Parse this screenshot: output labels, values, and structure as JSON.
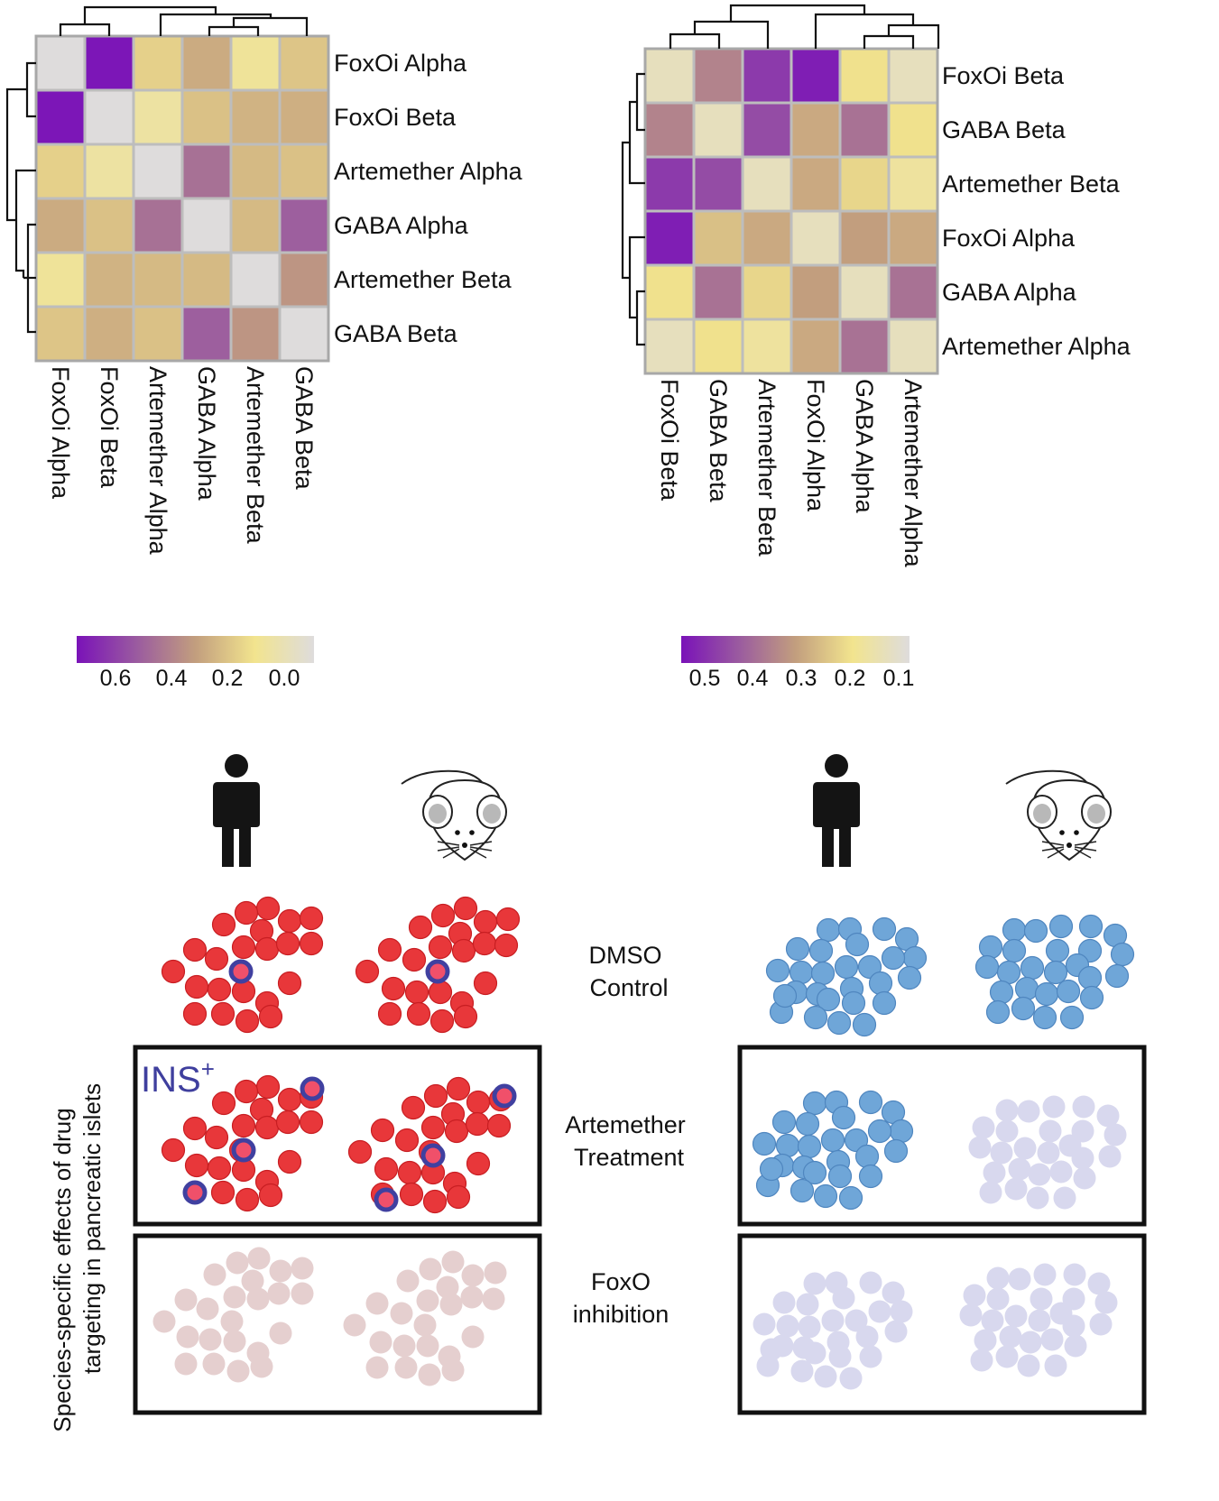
{
  "heatmap_left": {
    "row_labels": [
      "FoxOi Alpha",
      "FoxOi Beta",
      "Artemether Alpha",
      "GABA Alpha",
      "Artemether Beta",
      "GABA Beta"
    ],
    "col_labels": [
      "FoxOi Alpha",
      "FoxOi Beta",
      "Artemether Alpha",
      "GABA Alpha",
      "Artemether Beta",
      "GABA Beta"
    ],
    "values": [
      [
        0.0,
        0.74,
        0.24,
        0.34,
        0.16,
        0.27
      ],
      [
        0.74,
        0.0,
        0.14,
        0.28,
        0.32,
        0.33
      ],
      [
        0.24,
        0.14,
        0.0,
        0.5,
        0.3,
        0.28
      ],
      [
        0.34,
        0.28,
        0.5,
        0.0,
        0.3,
        0.55
      ],
      [
        0.16,
        0.32,
        0.3,
        0.3,
        0.0,
        0.4
      ],
      [
        0.27,
        0.33,
        0.28,
        0.55,
        0.4,
        0.0
      ]
    ],
    "colorbar": {
      "ticks": [
        "0.6",
        "0.4",
        "0.2",
        "0.0"
      ],
      "min": 0.0,
      "max": 0.75
    }
  },
  "heatmap_right": {
    "row_labels": [
      "FoxOi Beta",
      "GABA Beta",
      "Artemether Beta",
      "FoxOi  Alpha",
      "GABA Alpha",
      "Artemether Alpha"
    ],
    "col_labels": [
      "FoxOi Beta",
      "GABA Beta",
      "Artemether Beta",
      "FoxOi Alpha",
      "GABA Alpha",
      "Artemether  Alpha"
    ],
    "values": [
      [
        0.1,
        0.35,
        0.48,
        0.53,
        0.18,
        0.1
      ],
      [
        0.35,
        0.1,
        0.45,
        0.28,
        0.38,
        0.18
      ],
      [
        0.48,
        0.45,
        0.1,
        0.28,
        0.2,
        0.15
      ],
      [
        0.53,
        0.24,
        0.28,
        0.1,
        0.3,
        0.28
      ],
      [
        0.18,
        0.38,
        0.2,
        0.3,
        0.1,
        0.38
      ],
      [
        0.1,
        0.18,
        0.15,
        0.28,
        0.38,
        0.1
      ]
    ],
    "colorbar": {
      "ticks": [
        "0.5",
        "0.4",
        "0.3",
        "0.2",
        "0.1"
      ],
      "min": 0.05,
      "max": 0.55
    }
  },
  "colormap": [
    "#7a12b8",
    "#9a5aa0",
    "#c29e7e",
    "#f2e48e",
    "#dedcdc"
  ],
  "colors": {
    "human_cell": "#e8373a",
    "mouse_cell": "#6fa6d8",
    "human_cell_faded": "#e5cfcf",
    "mouse_cell_faded": "#d8d8ee",
    "ins_ring": "#4040a0"
  },
  "icons": [
    "human-silhouette-icon",
    "mouse-icon"
  ],
  "labels": {
    "ins": "INS",
    "ins_sup": "+",
    "dmso_1": "DMSO",
    "dmso_2": "Control",
    "art_1": "Artemether",
    "art_2": "Treatment",
    "foxo_1": "FoxO",
    "foxo_2": "inhibition",
    "side_1": "Species-specific effects of drug",
    "side_2": "targeting in pancreatic islets"
  }
}
